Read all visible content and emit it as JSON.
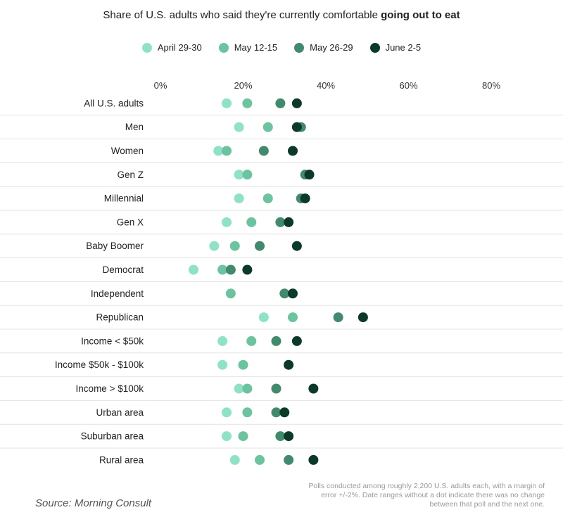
{
  "chart_data": {
    "type": "dot",
    "title_prefix": "Share of U.S. adults who said they're currently comfortable ",
    "title_emphasis": "going out to eat",
    "x_ticks": [
      "0%",
      "20%",
      "40%",
      "60%",
      "80%"
    ],
    "x_tick_values": [
      0,
      20,
      40,
      60,
      80
    ],
    "xlim": [
      0,
      80
    ],
    "legend_position": "top-center",
    "series": [
      {
        "name": "April 29-30",
        "color": "#8fe3c4"
      },
      {
        "name": "May 12-15",
        "color": "#6cc39f"
      },
      {
        "name": "May 26-29",
        "color": "#428a6e"
      },
      {
        "name": "June 2-5",
        "color": "#0b3a29"
      }
    ],
    "categories": [
      {
        "label": "All U.S. adults",
        "values": [
          16,
          21,
          29,
          33
        ]
      },
      {
        "label": "Men",
        "values": [
          19,
          26,
          34,
          33
        ]
      },
      {
        "label": "Women",
        "values": [
          14,
          16,
          25,
          32
        ]
      },
      {
        "label": "Gen Z",
        "values": [
          19,
          21,
          35,
          36
        ]
      },
      {
        "label": "Millennial",
        "values": [
          19,
          26,
          34,
          35
        ]
      },
      {
        "label": "Gen X",
        "values": [
          16,
          22,
          29,
          31
        ]
      },
      {
        "label": "Baby Boomer",
        "values": [
          13,
          18,
          24,
          33
        ]
      },
      {
        "label": "Democrat",
        "values": [
          8,
          15,
          17,
          21
        ]
      },
      {
        "label": "Independent",
        "values": [
          null,
          17,
          30,
          32
        ]
      },
      {
        "label": "Republican",
        "values": [
          25,
          32,
          43,
          49
        ]
      },
      {
        "label": "Income < $50k",
        "values": [
          15,
          22,
          28,
          33
        ]
      },
      {
        "label": "Income $50k - $100k",
        "values": [
          15,
          20,
          null,
          31
        ]
      },
      {
        "label": "Income > $100k",
        "values": [
          19,
          21,
          28,
          37
        ]
      },
      {
        "label": "Urban area",
        "values": [
          16,
          21,
          28,
          30
        ]
      },
      {
        "label": "Suburban area",
        "values": [
          16,
          20,
          29,
          31
        ]
      },
      {
        "label": "Rural area",
        "values": [
          18,
          24,
          31,
          37
        ]
      }
    ]
  },
  "footer": {
    "note": "Polls conducted among roughly 2,200 U.S. adults each, with a margin of error +/-2%. Date ranges without a dot indicate there was no change between that poll and the next one.",
    "source": "Source: Morning Consult"
  }
}
